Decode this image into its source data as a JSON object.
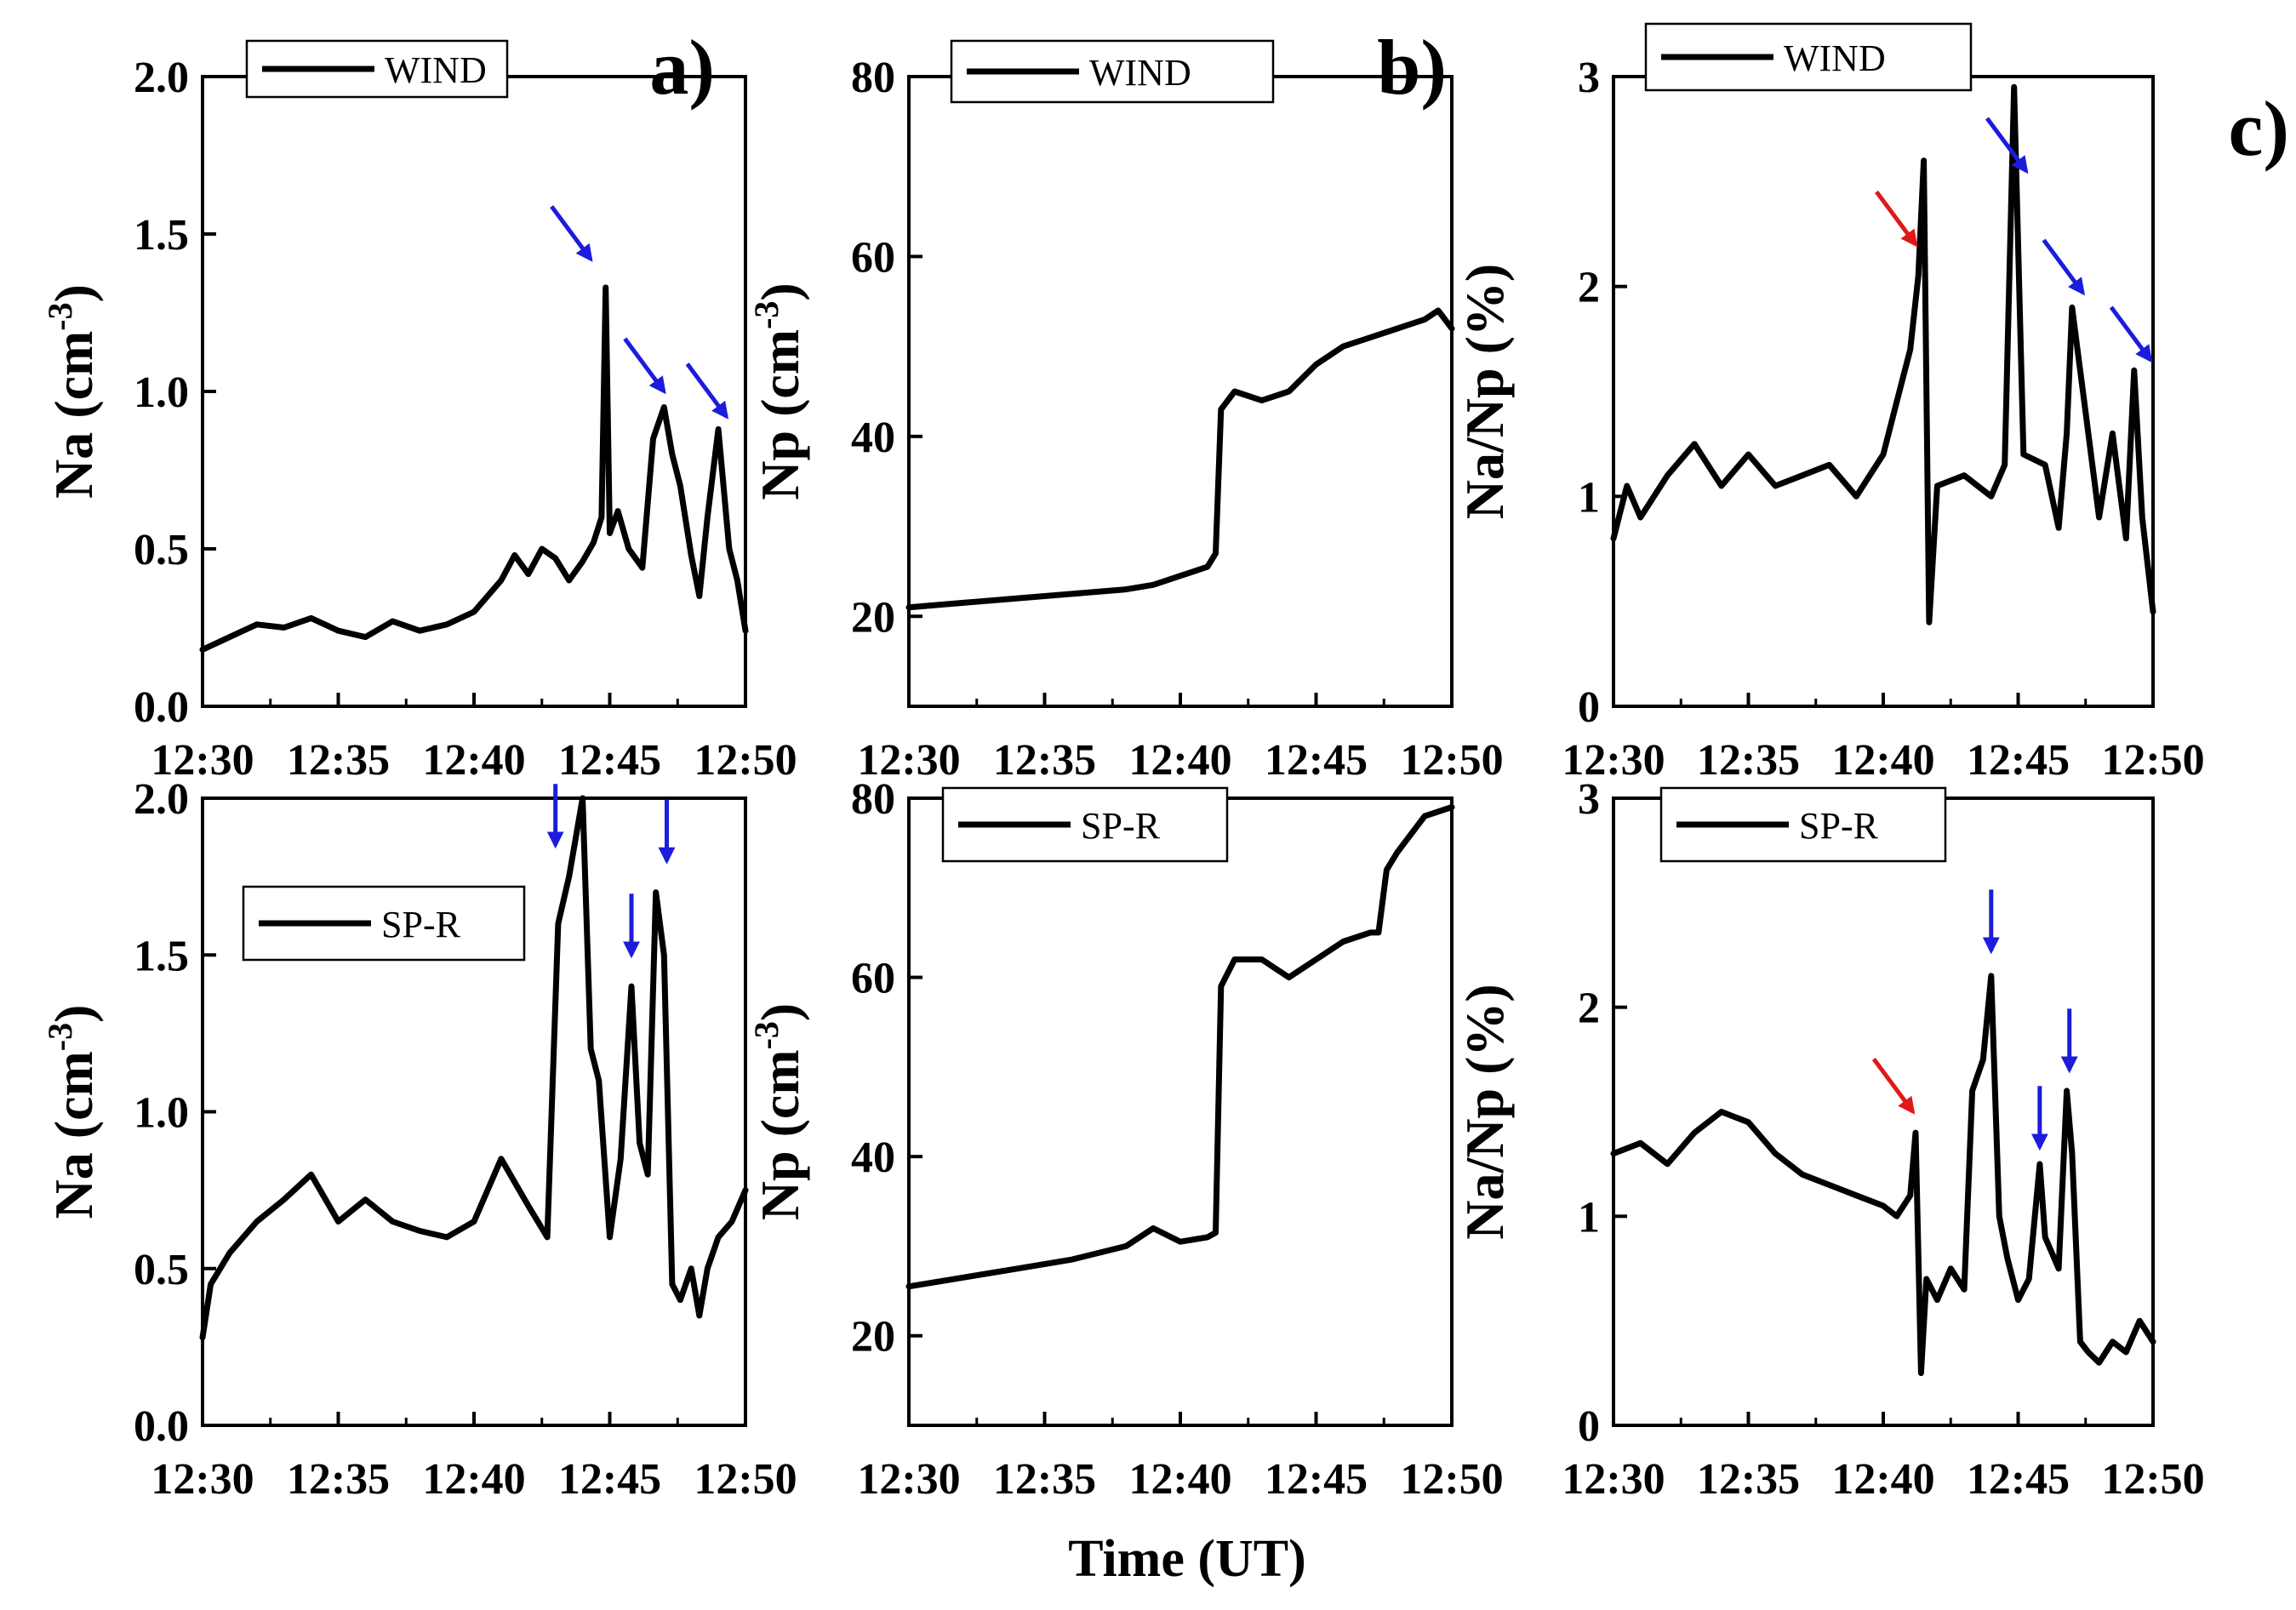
{
  "figure": {
    "x_label": "Time (UT)",
    "x_ticks": [
      "12:30",
      "12:35",
      "12:40",
      "12:45",
      "12:50"
    ],
    "line_color": "#000000",
    "arrow_colors": {
      "blue": "#1c1cdc",
      "red": "#e01818"
    }
  },
  "chart_data": [
    {
      "id": "na_wind",
      "type": "line",
      "panel_label": "a)",
      "legend": "WIND",
      "legend_pos": "top-left",
      "ylabel_main": "Na (cm",
      "ylabel_sup": "-3",
      "ylabel_end": ")",
      "xlim": [
        0,
        20
      ],
      "ylim": [
        0,
        2.0
      ],
      "y_ticks": [
        0,
        0.5,
        1.0,
        1.5,
        2.0
      ],
      "y_tick_labels": [
        "0.0",
        "0.5",
        "1.0",
        "1.5",
        "2.0"
      ],
      "x_ticks": [
        0,
        5,
        10,
        15,
        20
      ],
      "x_tick_labels": [
        "12:30",
        "12:35",
        "12:40",
        "12:45",
        "12:50"
      ],
      "x": [
        0,
        1,
        2,
        3,
        4,
        5,
        6,
        7,
        8,
        9,
        10,
        11,
        11.5,
        12,
        12.5,
        13,
        13.5,
        14,
        14.4,
        14.7,
        14.85,
        15,
        15.3,
        15.7,
        16.2,
        16.6,
        17,
        17.3,
        17.6,
        18,
        18.3,
        18.6,
        19,
        19.4,
        19.7,
        20
      ],
      "y": [
        0.18,
        0.22,
        0.26,
        0.25,
        0.28,
        0.24,
        0.22,
        0.27,
        0.24,
        0.26,
        0.3,
        0.4,
        0.48,
        0.42,
        0.5,
        0.47,
        0.4,
        0.46,
        0.52,
        0.6,
        1.33,
        0.55,
        0.62,
        0.5,
        0.44,
        0.85,
        0.95,
        0.8,
        0.7,
        0.48,
        0.35,
        0.6,
        0.88,
        0.5,
        0.4,
        0.24
      ],
      "arrows": [
        {
          "x": 14.3,
          "y": 1.42,
          "color": "blue"
        },
        {
          "x": 17.0,
          "y": 1.0,
          "color": "blue"
        },
        {
          "x": 19.3,
          "y": 0.92,
          "color": "blue"
        }
      ]
    },
    {
      "id": "np_wind",
      "type": "line",
      "panel_label": "b)",
      "legend": "WIND",
      "legend_pos": "top-left",
      "ylabel_main": "Np (cm",
      "ylabel_sup": "-3",
      "ylabel_end": ")",
      "xlim": [
        0,
        20
      ],
      "ylim": [
        10,
        80
      ],
      "y_ticks": [
        20,
        40,
        60,
        80
      ],
      "y_tick_labels": [
        "20",
        "40",
        "60",
        "80"
      ],
      "x_ticks": [
        0,
        5,
        10,
        15,
        20
      ],
      "x_tick_labels": [
        "12:30",
        "12:35",
        "12:40",
        "12:45",
        "12:50"
      ],
      "x": [
        0,
        2,
        4,
        6,
        8,
        9,
        10,
        11,
        11.3,
        11.5,
        12,
        13,
        14,
        15,
        16,
        17,
        18,
        19,
        19.5,
        20
      ],
      "y": [
        21,
        21.5,
        22,
        22.5,
        23,
        23.5,
        24.5,
        25.5,
        27,
        43,
        45,
        44,
        45,
        48,
        50,
        51,
        52,
        53,
        54,
        52
      ],
      "arrows": []
    },
    {
      "id": "ratio_wind",
      "type": "line",
      "panel_label": "c)",
      "legend": "WIND",
      "legend_pos": "top-left",
      "ylabel_main": "Na/Np (%)",
      "ylabel_sup": "",
      "ylabel_end": "",
      "xlim": [
        0,
        20
      ],
      "ylim": [
        0,
        3
      ],
      "y_ticks": [
        0,
        1,
        2,
        3
      ],
      "y_tick_labels": [
        "0",
        "1",
        "2",
        "3"
      ],
      "x_ticks": [
        0,
        5,
        10,
        15,
        20
      ],
      "x_tick_labels": [
        "12:30",
        "12:35",
        "12:40",
        "12:45",
        "12:50"
      ],
      "x": [
        0,
        0.5,
        1,
        2,
        3,
        4,
        5,
        6,
        7,
        8,
        9,
        10,
        10.5,
        11,
        11.3,
        11.5,
        11.7,
        12,
        13,
        14,
        14.5,
        14.85,
        15.2,
        16,
        16.5,
        16.8,
        17,
        17.2,
        17.5,
        18,
        18.5,
        19,
        19.3,
        19.6,
        20
      ],
      "y": [
        0.8,
        1.05,
        0.9,
        1.1,
        1.25,
        1.05,
        1.2,
        1.05,
        1.1,
        1.15,
        1.0,
        1.2,
        1.45,
        1.7,
        2.05,
        2.6,
        0.4,
        1.05,
        1.1,
        1.0,
        1.15,
        2.95,
        1.2,
        1.15,
        0.85,
        1.3,
        1.9,
        1.7,
        1.4,
        0.9,
        1.3,
        0.8,
        1.6,
        0.9,
        0.45
      ],
      "arrows": [
        {
          "x": 11.2,
          "y": 2.2,
          "color": "red"
        },
        {
          "x": 15.3,
          "y": 2.55,
          "color": "blue"
        },
        {
          "x": 17.4,
          "y": 1.97,
          "color": "blue"
        },
        {
          "x": 19.9,
          "y": 1.65,
          "color": "blue"
        }
      ]
    },
    {
      "id": "na_spr",
      "type": "line",
      "panel_label": "",
      "legend": "SP-R",
      "legend_pos": "center-left",
      "ylabel_main": "Na (cm",
      "ylabel_sup": "-3",
      "ylabel_end": ")",
      "xlim": [
        0,
        20
      ],
      "ylim": [
        0,
        2.0
      ],
      "y_ticks": [
        0,
        0.5,
        1.0,
        1.5,
        2.0
      ],
      "y_tick_labels": [
        "0.0",
        "0.5",
        "1.0",
        "1.5",
        "2.0"
      ],
      "x_ticks": [
        0,
        5,
        10,
        15,
        20
      ],
      "x_tick_labels": [
        "12:30",
        "12:35",
        "12:40",
        "12:45",
        "12:50"
      ],
      "x": [
        0,
        0.3,
        1,
        2,
        3,
        4,
        5,
        6,
        7,
        8,
        9,
        10,
        11,
        12,
        12.7,
        13.1,
        13.5,
        14,
        14.3,
        14.6,
        15,
        15.4,
        15.8,
        16.1,
        16.4,
        16.7,
        17,
        17.3,
        17.6,
        18,
        18.3,
        18.6,
        19,
        19.5,
        20
      ],
      "y": [
        0.28,
        0.45,
        0.55,
        0.65,
        0.72,
        0.8,
        0.65,
        0.72,
        0.65,
        0.62,
        0.6,
        0.65,
        0.85,
        0.7,
        0.6,
        1.6,
        1.75,
        2.0,
        1.2,
        1.1,
        0.6,
        0.85,
        1.4,
        0.9,
        0.8,
        1.7,
        1.5,
        0.45,
        0.4,
        0.5,
        0.35,
        0.5,
        0.6,
        0.65,
        0.75
      ],
      "arrows": [
        {
          "x": 13.0,
          "y": 1.85,
          "color": "blue"
        },
        {
          "x": 15.8,
          "y": 1.5,
          "color": "blue"
        },
        {
          "x": 17.1,
          "y": 1.8,
          "color": "blue"
        }
      ]
    },
    {
      "id": "np_spr",
      "type": "line",
      "panel_label": "",
      "legend": "SP-R",
      "legend_pos": "top-left",
      "ylabel_main": "Np (cm",
      "ylabel_sup": "-3",
      "ylabel_end": ")",
      "xlim": [
        0,
        20
      ],
      "ylim": [
        10,
        80
      ],
      "y_ticks": [
        20,
        40,
        60,
        80
      ],
      "y_tick_labels": [
        "20",
        "40",
        "60",
        "80"
      ],
      "x_ticks": [
        0,
        5,
        10,
        15,
        20
      ],
      "x_tick_labels": [
        "12:30",
        "12:35",
        "12:40",
        "12:45",
        "12:50"
      ],
      "x": [
        0,
        2,
        4,
        6,
        8,
        9,
        10,
        11,
        11.3,
        11.5,
        12,
        13,
        14,
        15,
        16,
        17,
        17.3,
        17.6,
        18,
        18.5,
        19,
        20
      ],
      "y": [
        25.5,
        26.5,
        27.5,
        28.5,
        30,
        32,
        30.5,
        31,
        31.5,
        59,
        62,
        62,
        60,
        62,
        64,
        65,
        65,
        72,
        74,
        76,
        78,
        79
      ],
      "arrows": []
    },
    {
      "id": "ratio_spr",
      "type": "line",
      "panel_label": "",
      "legend": "SP-R",
      "legend_pos": "top-left",
      "ylabel_main": "Na/Np (%)",
      "ylabel_sup": "",
      "ylabel_end": "",
      "xlim": [
        0,
        20
      ],
      "ylim": [
        0,
        3
      ],
      "y_ticks": [
        0,
        1,
        2,
        3
      ],
      "y_tick_labels": [
        "0",
        "1",
        "2",
        "3"
      ],
      "x_ticks": [
        0,
        5,
        10,
        15,
        20
      ],
      "x_tick_labels": [
        "12:30",
        "12:35",
        "12:40",
        "12:45",
        "12:50"
      ],
      "x": [
        0,
        1,
        2,
        3,
        4,
        5,
        6,
        7,
        8,
        9,
        10,
        10.5,
        11,
        11.2,
        11.4,
        11.6,
        12,
        12.5,
        13,
        13.3,
        13.7,
        14,
        14.3,
        14.6,
        15,
        15.4,
        15.8,
        16,
        16.5,
        16.8,
        17,
        17.3,
        17.6,
        18,
        18.5,
        19,
        19.5,
        20
      ],
      "y": [
        1.3,
        1.35,
        1.25,
        1.4,
        1.5,
        1.45,
        1.3,
        1.2,
        1.15,
        1.1,
        1.05,
        1.0,
        1.1,
        1.4,
        0.25,
        0.7,
        0.6,
        0.75,
        0.65,
        1.6,
        1.75,
        2.15,
        1.0,
        0.8,
        0.6,
        0.7,
        1.25,
        0.9,
        0.75,
        1.6,
        1.3,
        0.4,
        0.35,
        0.3,
        0.4,
        0.35,
        0.5,
        0.4
      ],
      "arrows": [
        {
          "x": 11.1,
          "y": 1.5,
          "color": "red"
        },
        {
          "x": 14.0,
          "y": 2.27,
          "color": "blue"
        },
        {
          "x": 15.8,
          "y": 1.33,
          "color": "blue"
        },
        {
          "x": 16.9,
          "y": 1.7,
          "color": "blue"
        }
      ]
    }
  ]
}
